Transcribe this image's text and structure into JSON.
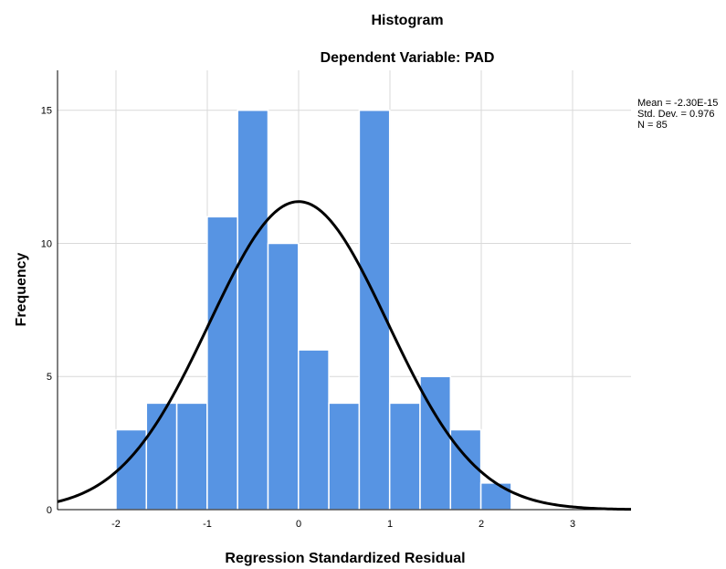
{
  "chart_data": {
    "type": "bar",
    "title": "Histogram",
    "subtitle": "Dependent Variable: PAD",
    "xlabel": "Regression Standardized Residual",
    "ylabel": "Frequency",
    "xlim": [
      -2.64,
      3.64
    ],
    "ylim": [
      0,
      16.5
    ],
    "x_ticks": [
      -2,
      -1,
      0,
      1,
      2,
      3
    ],
    "y_ticks": [
      0,
      5,
      10,
      15
    ],
    "bin_width": 0.333,
    "bin_start": -2.0,
    "values": [
      3,
      4,
      4,
      11,
      15,
      10,
      6,
      4,
      15,
      4,
      5,
      3,
      1
    ],
    "normal_curve": {
      "mean": 0,
      "sd": 0.976,
      "n": 85
    },
    "stats": [
      "Mean = -2.30E-15",
      "Std. Dev. = 0.976",
      "N = 85"
    ],
    "grid": true,
    "legend": "top-right",
    "colors": {
      "bar": "#5794E3",
      "bar_edge": "#FFFFFF",
      "grid": "#D9D9D9",
      "axis": "#000000",
      "curve": "#000000"
    }
  }
}
